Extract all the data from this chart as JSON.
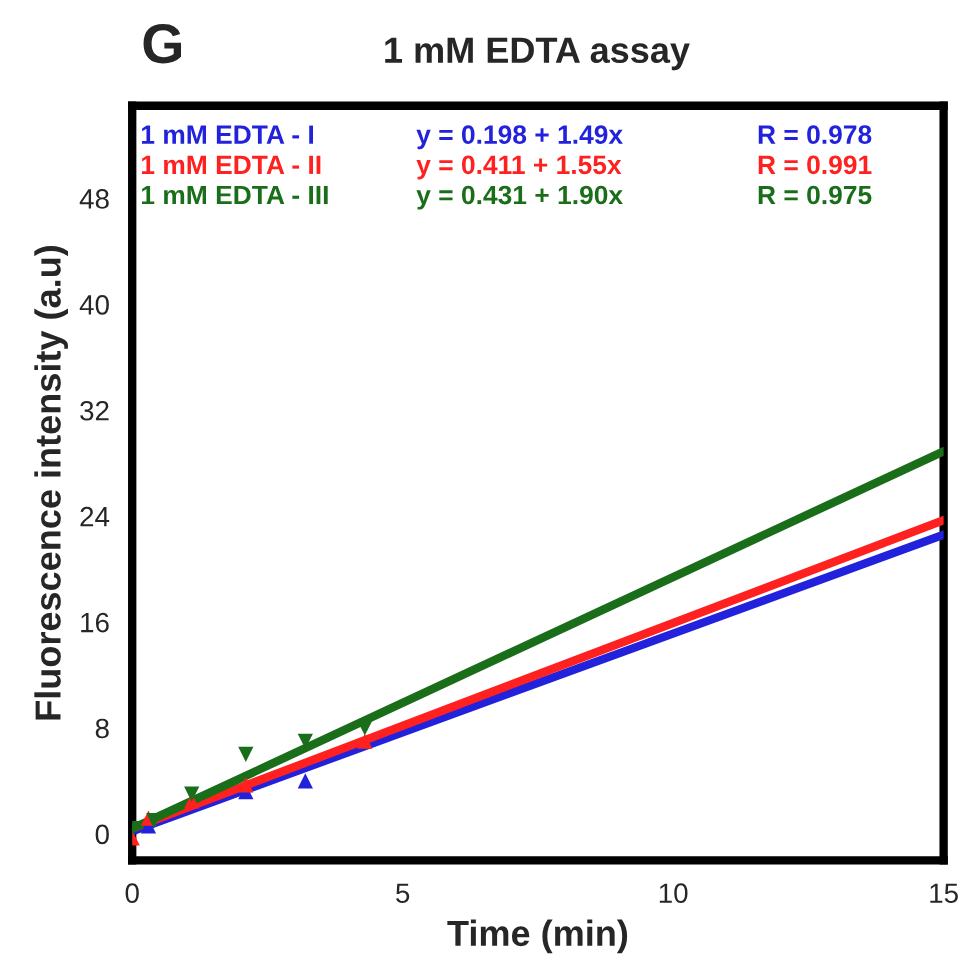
{
  "chart_data": {
    "type": "scatter",
    "title": "1 mM EDTA assay",
    "xlabel": "Time (min)",
    "ylabel": "Fluorescence intensity (a.u)",
    "xlim": [
      0,
      15
    ],
    "xticks": [
      0,
      5,
      10,
      15
    ],
    "ylim": [
      -2,
      55
    ],
    "yticks": [
      0,
      8,
      16,
      24,
      32,
      40,
      48
    ],
    "grid": false,
    "legend": "top left",
    "series": [
      {
        "name": "1 mM EDTA - I",
        "color": "#2222dd",
        "marker": "triangle",
        "x": [
          0.3,
          2.1,
          3.2
        ],
        "values": [
          0.6,
          3.2,
          4.0
        ]
      },
      {
        "name": "1 mM EDTA - II",
        "color": "#ff2020",
        "marker": "triangle",
        "x": [
          0,
          0.3,
          1.1,
          2.1,
          4.3
        ],
        "values": [
          -0.3,
          1.2,
          2.5,
          3.7,
          7.0
        ]
      },
      {
        "name": "1 mM EDTA - III",
        "color": "#1a6e1a",
        "marker": "triangle_down",
        "x": [
          0,
          0.4,
          1.1,
          2.1,
          3.2,
          4.3
        ],
        "values": [
          0.4,
          1.0,
          3.0,
          6.0,
          7.0,
          8.0
        ]
      },
      {
        "type": "line",
        "color": "#2222dd",
        "marker": "none",
        "x": [
          0,
          15
        ],
        "values": [
          0.2,
          22.6
        ]
      },
      {
        "type": "line",
        "color": "#ff2020",
        "marker": "none",
        "x": [
          0,
          15
        ],
        "values": [
          0.4,
          23.7
        ]
      },
      {
        "type": "line",
        "color": "#1a6e1a",
        "marker": "none",
        "x": [
          0,
          15
        ],
        "values": [
          0.4,
          28.9
        ]
      }
    ],
    "annotations": [
      "G",
      "y = 0.198 + 1.49x",
      "R = 0.978",
      "y = 0.411 + 1.55x",
      "R = 0.991",
      "y = 0.431 + 1.90x",
      "R = 0.975"
    ]
  }
}
